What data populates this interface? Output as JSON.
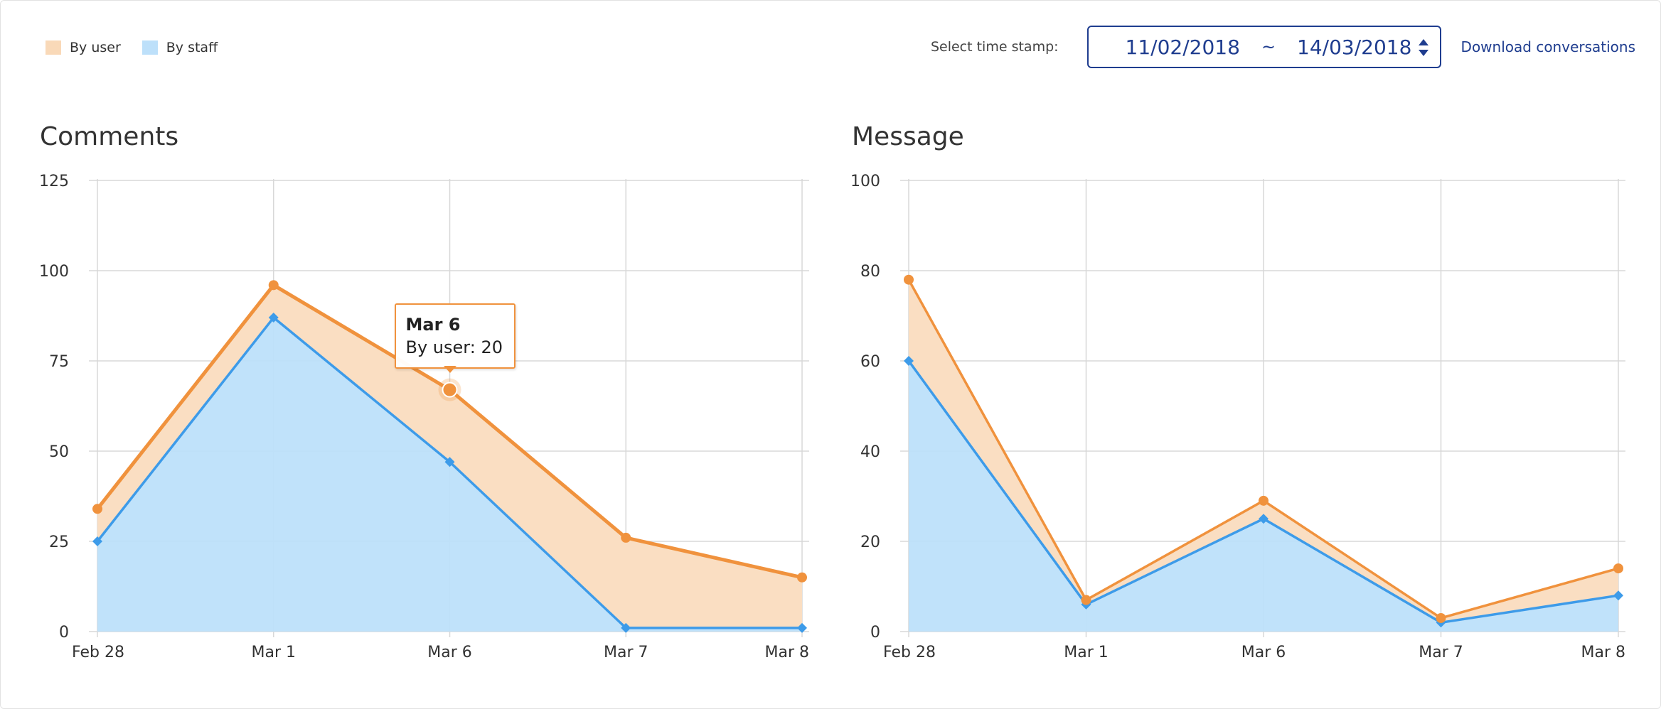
{
  "legend": {
    "items": [
      {
        "label": "By user",
        "color": "#f9d9b8"
      },
      {
        "label": "By staff",
        "color": "#bde0fa"
      }
    ]
  },
  "toolbar": {
    "timestamp_label": "Select time stamp:",
    "range_start": "11/02/2018",
    "range_separator": "~",
    "range_end": "14/03/2018",
    "download_label": "Download conversations"
  },
  "tooltip": {
    "title": "Mar 6",
    "series_label": "By user",
    "value": "20"
  },
  "colors": {
    "user_line": "#f0923d",
    "user_fill": "#fadec2",
    "staff_line": "#3d9be9",
    "staff_fill": "#bde0fa",
    "grid": "#d8d8d8",
    "accent": "#1f3d8f"
  },
  "chart_data": [
    {
      "type": "area",
      "title": "Comments",
      "categories": [
        "Feb 28",
        "Mar 1",
        "Mar 6",
        "Mar 7",
        "Mar 8"
      ],
      "yticks": [
        0,
        25,
        50,
        75,
        100,
        125
      ],
      "ylim": [
        0,
        125
      ],
      "grid": true,
      "series": [
        {
          "name": "By user",
          "values": [
            34,
            96,
            67,
            26,
            15
          ]
        },
        {
          "name": "By staff",
          "values": [
            25,
            87,
            47,
            1,
            1
          ]
        }
      ],
      "highlight": {
        "series": 0,
        "index": 2
      }
    },
    {
      "type": "area",
      "title": "Message",
      "categories": [
        "Feb 28",
        "Mar 1",
        "Mar 6",
        "Mar 7",
        "Mar 8"
      ],
      "yticks": [
        0,
        20,
        40,
        60,
        80,
        100
      ],
      "ylim": [
        0,
        100
      ],
      "grid": true,
      "series": [
        {
          "name": "By user",
          "values": [
            78,
            7,
            29,
            3,
            14
          ]
        },
        {
          "name": "By staff",
          "values": [
            60,
            6,
            25,
            2,
            8
          ]
        }
      ]
    }
  ]
}
